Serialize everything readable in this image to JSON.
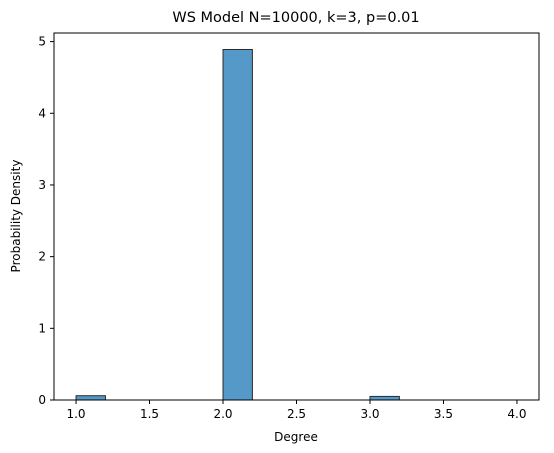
{
  "chart_data": {
    "type": "bar",
    "title": "WS Model N=10000, k=3, p=0.01",
    "xlabel": "Degree",
    "ylabel": "Probability Density",
    "xlim": [
      0.85,
      4.15
    ],
    "ylim": [
      0,
      5.12
    ],
    "xticks": [
      1.0,
      1.5,
      2.0,
      2.5,
      3.0,
      3.5,
      4.0
    ],
    "xtick_labels": [
      "1.0",
      "1.5",
      "2.0",
      "2.5",
      "3.0",
      "3.5",
      "4.0"
    ],
    "yticks": [
      0,
      1,
      2,
      3,
      4,
      5
    ],
    "ytick_labels": [
      "0",
      "1",
      "2",
      "3",
      "4",
      "5"
    ],
    "bins": [
      {
        "x0": 1.0,
        "x1": 1.2,
        "value": 0.06
      },
      {
        "x0": 2.0,
        "x1": 2.2,
        "value": 4.89
      },
      {
        "x0": 3.0,
        "x1": 3.2,
        "value": 0.05
      }
    ],
    "bar_color": "#5499c7",
    "edge_color": "#2b2b2b",
    "grid": false,
    "legend": "none"
  }
}
